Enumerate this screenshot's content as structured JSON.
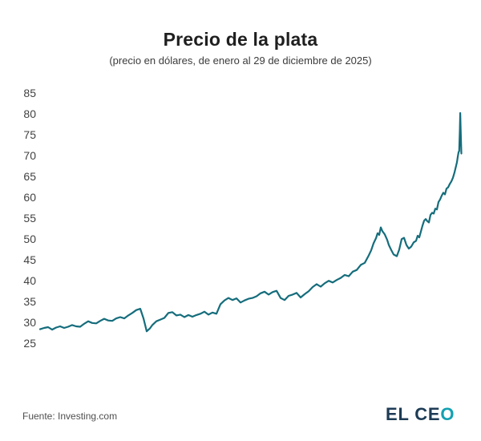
{
  "header": {
    "title": "Precio de la plata",
    "subtitle": "(precio en dólares, de enero al 29 de diciembre de 2025)"
  },
  "footer": {
    "source": "Fuente: Investing.com",
    "logo": {
      "text_primary": "EL CE",
      "text_accent": "O",
      "color_primary": "#1d3b55",
      "color_accent": "#12a1b2"
    }
  },
  "chart_data": {
    "type": "line",
    "title": "Precio de la plata",
    "subtitle": "(precio en dólares, de enero al 29 de diciembre de 2025)",
    "x_range": [
      "enero 2025",
      "29 de diciembre de 2025"
    ],
    "xlabel": "",
    "ylabel": "precio en dólares",
    "ylim": [
      25,
      85
    ],
    "yticks": [
      85,
      80,
      75,
      70,
      65,
      60,
      55,
      50,
      45,
      40,
      35,
      30,
      25
    ],
    "grid": false,
    "legend_position": "none",
    "line_color": "#156d7c",
    "line_width": 2.2,
    "source": "Investing.com",
    "series": [
      {
        "name": "Precio de la plata (USD)",
        "points": [
          [
            0.0,
            28.4
          ],
          [
            0.0095,
            28.7
          ],
          [
            0.019,
            28.9
          ],
          [
            0.0285,
            28.3
          ],
          [
            0.038,
            28.8
          ],
          [
            0.0476,
            29.1
          ],
          [
            0.0571,
            28.7
          ],
          [
            0.0666,
            29.0
          ],
          [
            0.0761,
            29.4
          ],
          [
            0.0856,
            29.1
          ],
          [
            0.0951,
            29.0
          ],
          [
            0.1046,
            29.7
          ],
          [
            0.1142,
            30.3
          ],
          [
            0.1237,
            29.9
          ],
          [
            0.1332,
            29.8
          ],
          [
            0.1427,
            30.4
          ],
          [
            0.1522,
            30.9
          ],
          [
            0.1617,
            30.5
          ],
          [
            0.1713,
            30.4
          ],
          [
            0.1808,
            31.0
          ],
          [
            0.1903,
            31.3
          ],
          [
            0.1998,
            31.0
          ],
          [
            0.2093,
            31.7
          ],
          [
            0.2188,
            32.3
          ],
          [
            0.2283,
            33.0
          ],
          [
            0.2379,
            33.3
          ],
          [
            0.2455,
            31.0
          ],
          [
            0.2531,
            27.9
          ],
          [
            0.2607,
            28.6
          ],
          [
            0.2664,
            29.4
          ],
          [
            0.2759,
            30.3
          ],
          [
            0.2854,
            30.7
          ],
          [
            0.2949,
            31.1
          ],
          [
            0.3045,
            32.3
          ],
          [
            0.314,
            32.5
          ],
          [
            0.3235,
            31.7
          ],
          [
            0.333,
            31.9
          ],
          [
            0.3425,
            31.3
          ],
          [
            0.352,
            31.8
          ],
          [
            0.3616,
            31.4
          ],
          [
            0.3711,
            31.8
          ],
          [
            0.3806,
            32.1
          ],
          [
            0.3901,
            32.6
          ],
          [
            0.3996,
            31.9
          ],
          [
            0.4091,
            32.4
          ],
          [
            0.4186,
            32.1
          ],
          [
            0.4282,
            34.4
          ],
          [
            0.4377,
            35.3
          ],
          [
            0.4472,
            35.9
          ],
          [
            0.4567,
            35.4
          ],
          [
            0.4662,
            35.8
          ],
          [
            0.4757,
            34.8
          ],
          [
            0.4853,
            35.3
          ],
          [
            0.4948,
            35.7
          ],
          [
            0.5043,
            35.9
          ],
          [
            0.5138,
            36.3
          ],
          [
            0.5233,
            37.0
          ],
          [
            0.5328,
            37.4
          ],
          [
            0.5423,
            36.7
          ],
          [
            0.5519,
            37.3
          ],
          [
            0.5614,
            37.6
          ],
          [
            0.5709,
            35.9
          ],
          [
            0.5804,
            35.4
          ],
          [
            0.5899,
            36.4
          ],
          [
            0.5994,
            36.7
          ],
          [
            0.6089,
            37.1
          ],
          [
            0.6185,
            36.0
          ],
          [
            0.628,
            36.8
          ],
          [
            0.6375,
            37.5
          ],
          [
            0.647,
            38.5
          ],
          [
            0.6565,
            39.2
          ],
          [
            0.666,
            38.6
          ],
          [
            0.6755,
            39.4
          ],
          [
            0.6851,
            40.0
          ],
          [
            0.6946,
            39.6
          ],
          [
            0.7041,
            40.2
          ],
          [
            0.7136,
            40.7
          ],
          [
            0.7231,
            41.4
          ],
          [
            0.7326,
            41.1
          ],
          [
            0.7421,
            42.2
          ],
          [
            0.7517,
            42.6
          ],
          [
            0.7612,
            43.8
          ],
          [
            0.7707,
            44.3
          ],
          [
            0.7802,
            46.1
          ],
          [
            0.7859,
            47.3
          ],
          [
            0.7916,
            49.0
          ],
          [
            0.7973,
            50.2
          ],
          [
            0.8011,
            51.4
          ],
          [
            0.8049,
            51.0
          ],
          [
            0.8087,
            52.8
          ],
          [
            0.8125,
            51.9
          ],
          [
            0.8182,
            51.1
          ],
          [
            0.8239,
            49.8
          ],
          [
            0.8277,
            48.6
          ],
          [
            0.8335,
            47.4
          ],
          [
            0.8392,
            46.3
          ],
          [
            0.8468,
            45.9
          ],
          [
            0.8525,
            47.5
          ],
          [
            0.8582,
            50.0
          ],
          [
            0.8639,
            50.3
          ],
          [
            0.8696,
            48.6
          ],
          [
            0.8753,
            47.7
          ],
          [
            0.881,
            48.2
          ],
          [
            0.8867,
            49.2
          ],
          [
            0.8925,
            49.6
          ],
          [
            0.8963,
            50.8
          ],
          [
            0.9001,
            50.4
          ],
          [
            0.9039,
            51.8
          ],
          [
            0.9077,
            53.2
          ],
          [
            0.9115,
            54.4
          ],
          [
            0.9153,
            54.8
          ],
          [
            0.9191,
            54.3
          ],
          [
            0.9229,
            54.0
          ],
          [
            0.9267,
            55.8
          ],
          [
            0.9305,
            56.3
          ],
          [
            0.9343,
            56.1
          ],
          [
            0.9381,
            57.3
          ],
          [
            0.9419,
            57.1
          ],
          [
            0.9457,
            58.9
          ],
          [
            0.9496,
            59.5
          ],
          [
            0.9534,
            60.4
          ],
          [
            0.9572,
            61.1
          ],
          [
            0.961,
            60.7
          ],
          [
            0.9648,
            62.1
          ],
          [
            0.9686,
            62.4
          ],
          [
            0.9724,
            63.2
          ],
          [
            0.9762,
            63.8
          ],
          [
            0.98,
            64.7
          ],
          [
            0.9838,
            66.0
          ],
          [
            0.9867,
            67.2
          ],
          [
            0.9895,
            68.4
          ],
          [
            0.9914,
            69.7
          ],
          [
            0.9933,
            70.8
          ],
          [
            0.9949,
            71.1
          ],
          [
            0.9964,
            76.0
          ],
          [
            0.9973,
            80.2
          ],
          [
            0.9983,
            76.5
          ],
          [
            1.0,
            70.5
          ]
        ]
      }
    ]
  }
}
